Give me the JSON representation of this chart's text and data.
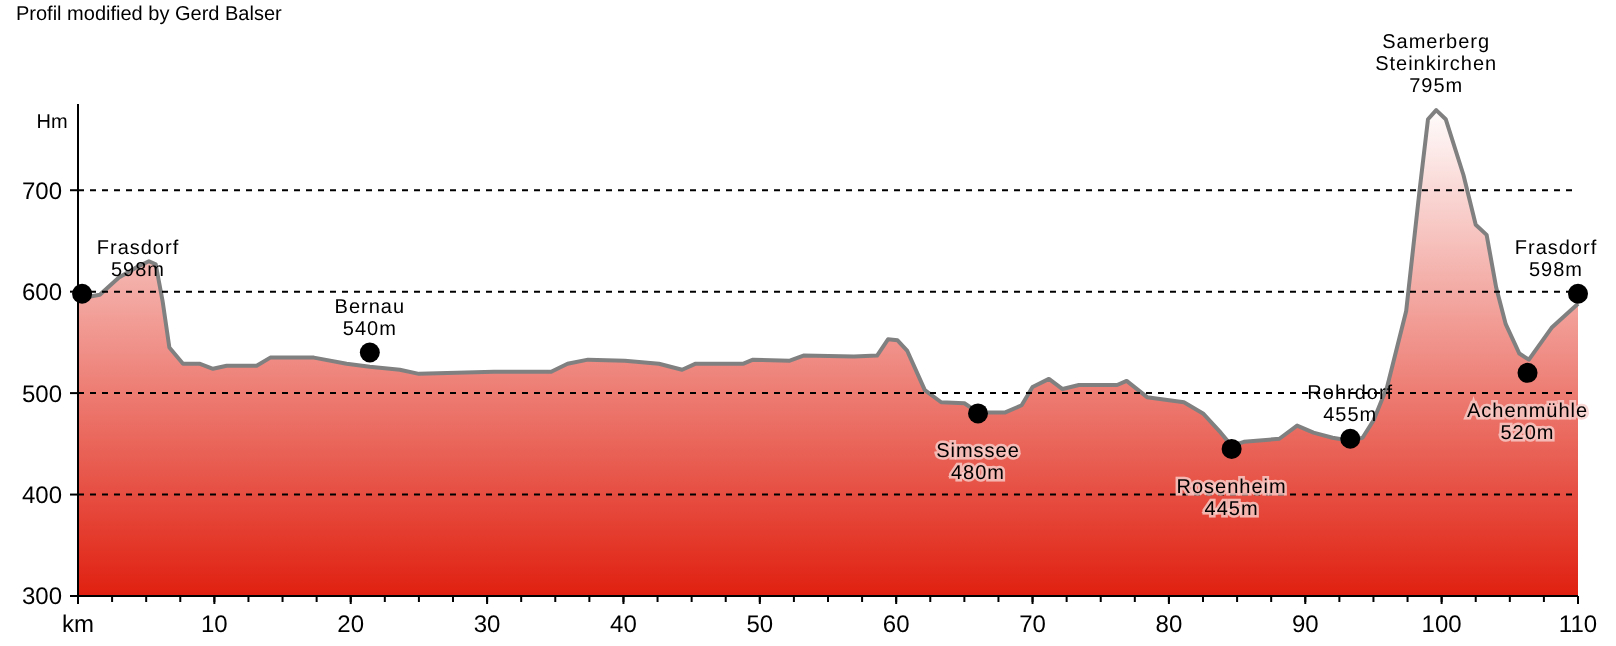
{
  "chart_data": {
    "type": "area",
    "title": "Profil modified by Gerd Balser",
    "ylabel": "Hm",
    "xlim": [
      0,
      110
    ],
    "ylim": [
      300,
      785
    ],
    "xticks": [
      {
        "value": 0,
        "label": "km"
      },
      10,
      20,
      30,
      40,
      50,
      60,
      70,
      80,
      90,
      100,
      110
    ],
    "yticks": [
      300,
      400,
      500,
      600,
      700
    ],
    "grid": "y",
    "line_style": "dashed",
    "series": [
      {
        "color": "#e02010",
        "x": [
          0,
          1.6,
          3,
          4.3,
          5.2,
          5.7,
          6.2,
          6.7,
          7.7,
          8.9,
          9.9,
          10.9,
          13.1,
          14.1,
          17.3,
          19.7,
          21.4,
          23.6,
          25,
          30.5,
          34.7,
          35.9,
          37.4,
          40.1,
          42.6,
          44.3,
          45.3,
          48.8,
          49.5,
          52.2,
          53.2,
          56.9,
          58.6,
          59.4,
          60.1,
          60.8,
          61.6,
          62.1,
          63.3,
          65,
          66,
          68,
          69.2,
          70,
          71.2,
          72.2,
          73.4,
          76.2,
          76.9,
          78.4,
          81.1,
          82.5,
          83.8,
          84.6,
          85.5,
          88.1,
          89.4,
          90.6,
          92,
          93.3,
          94.2,
          95,
          96,
          97.4,
          98.4,
          99,
          99.6,
          100.3,
          101.6,
          102.5,
          103.3,
          104,
          104.7,
          105.7,
          106.4,
          108.1,
          110
        ],
        "values": [
          593,
          597,
          614,
          624,
          630,
          627,
          591,
          545,
          529,
          529,
          524,
          527,
          527,
          535,
          535,
          529,
          526,
          523,
          519,
          521,
          521,
          529,
          533,
          532,
          529,
          523,
          529,
          529,
          533,
          532,
          537,
          536,
          537,
          553,
          552,
          542,
          518,
          503,
          491,
          490,
          481,
          481,
          488,
          506,
          514,
          504,
          508,
          508,
          512,
          496,
          491,
          480,
          461,
          448,
          452,
          455,
          468,
          461,
          456,
          453,
          456,
          473,
          506,
          581,
          702,
          770,
          779,
          770,
          715,
          666,
          656,
          604,
          568,
          539,
          533,
          565,
          588
        ]
      },
      {
        "type": "scatter",
        "color": "#000000",
        "marker": "circle",
        "x": [
          0.3,
          21.4,
          66,
          84.6,
          93.3,
          106.3,
          110
        ],
        "values": [
          598,
          540,
          480,
          445,
          455,
          520,
          598
        ]
      }
    ],
    "annotations": [
      {
        "text": "Frasdorf\n598m",
        "x": 0.3,
        "y": 598
      },
      {
        "text": "Bernau\n540m",
        "x": 21.4,
        "y": 540
      },
      {
        "text": "Simssee\n480m",
        "x": 66,
        "y": 480
      },
      {
        "text": "Rosenheim\n445m",
        "x": 84.6,
        "y": 445
      },
      {
        "text": "Rohrdorf\n455m",
        "x": 93.3,
        "y": 455
      },
      {
        "text": "Samerberg\nSteinkirchen\n795m",
        "x": 99.6,
        "y": 779
      },
      {
        "text": "Achenmühle\n520m",
        "x": 106.3,
        "y": 520
      },
      {
        "text": "Frasdorf\n598m",
        "x": 110,
        "y": 598
      }
    ]
  }
}
